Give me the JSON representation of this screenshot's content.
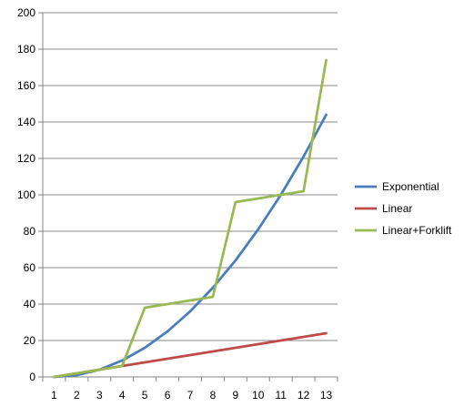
{
  "chart_data": {
    "type": "line",
    "categories": [
      "1",
      "2",
      "3",
      "4",
      "5",
      "6",
      "7",
      "8",
      "9",
      "10",
      "11",
      "12",
      "13"
    ],
    "ylim": [
      0,
      200
    ],
    "yticks": [
      0,
      20,
      40,
      60,
      80,
      100,
      120,
      140,
      160,
      180,
      200
    ],
    "grid": true,
    "legend_position": "right",
    "series": [
      {
        "name": "Exponential",
        "color": "#4a7ebb",
        "values": [
          0,
          1,
          4,
          9,
          16,
          25,
          36,
          49,
          64,
          81,
          100,
          121,
          144
        ]
      },
      {
        "name": "Linear",
        "color": "#be4b48",
        "values": [
          0,
          2,
          4,
          6,
          8,
          10,
          12,
          14,
          16,
          18,
          20,
          22,
          24
        ]
      },
      {
        "name": "Linear+Forklift",
        "color": "#98b954",
        "values": [
          0,
          2,
          4,
          6,
          38,
          40,
          42,
          44,
          96,
          98,
          100,
          102,
          174
        ]
      }
    ]
  }
}
